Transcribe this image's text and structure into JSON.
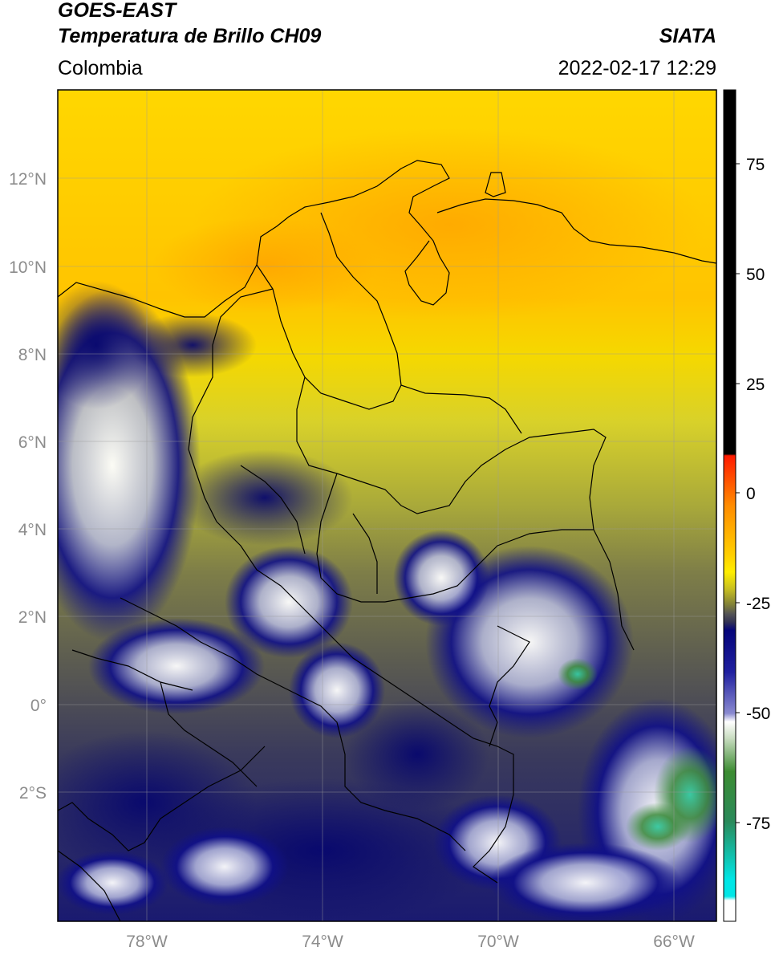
{
  "header": {
    "satellite": "GOES-EAST",
    "product": "Temperatura de Brillo CH09",
    "region": "Colombia",
    "source": "SIATA",
    "datetime": "2022-02-17 12:29"
  },
  "map": {
    "lat_ticks": [
      "12°N",
      "10°N",
      "8°N",
      "6°N",
      "4°N",
      "2°N",
      "0°",
      "2°S"
    ],
    "lon_ticks": [
      "78°W",
      "74°W",
      "70°W",
      "66°W"
    ],
    "grid": true,
    "extent": {
      "lon_min": -80,
      "lon_max": -65,
      "lat_min": -5,
      "lat_max": 14
    }
  },
  "colorbar": {
    "ticks": [
      "75",
      "50",
      "25",
      "0",
      "-25",
      "-50",
      "-75"
    ],
    "range": [
      -95,
      90
    ],
    "colors": {
      "black": "#000000",
      "red": "#ff2a00",
      "orange": "#ff9a00",
      "yellow": "#ffe600",
      "olive": "#7d7d2e",
      "gray": "#555555",
      "navy": "#0a0a80",
      "white": "#ffffff",
      "green": "#2e7d2e",
      "cyan": "#00e5e5"
    }
  }
}
